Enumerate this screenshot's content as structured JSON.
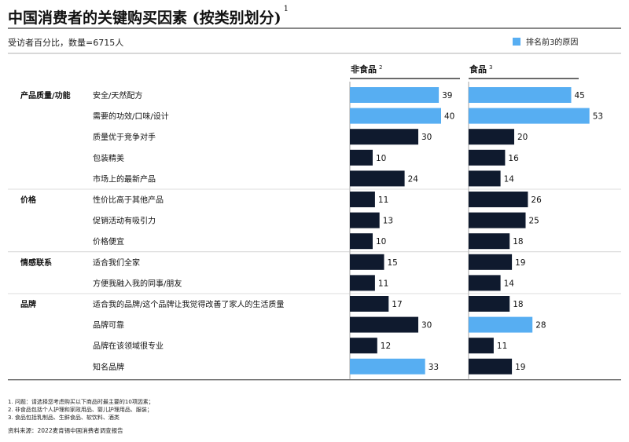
{
  "title": "中国消费者的关键购买因素 (按类别划分)",
  "title_note": "1",
  "subtitle": "受访者百分比，数量=6715人",
  "legend": {
    "label": "排名前3的原因",
    "color": "#57aef2"
  },
  "colors": {
    "highlight": "#57aef2",
    "normal": "#0f1a2e"
  },
  "chart_data": {
    "type": "bar",
    "orientation": "horizontal",
    "panels": [
      {
        "name": "非食品",
        "note": "2"
      },
      {
        "name": "食品",
        "note": "3"
      }
    ],
    "groups": [
      {
        "label": "产品质量/功能",
        "rows": [
          {
            "label": "安全/天然配方",
            "values": [
              39,
              45
            ],
            "top3": [
              true,
              true
            ]
          },
          {
            "label": "需要的功效/口味/设计",
            "values": [
              40,
              53
            ],
            "top3": [
              true,
              true
            ]
          },
          {
            "label": "质量优于竞争对手",
            "values": [
              30,
              20
            ],
            "top3": [
              false,
              false
            ]
          },
          {
            "label": "包装精美",
            "values": [
              10,
              16
            ],
            "top3": [
              false,
              false
            ]
          },
          {
            "label": "市场上的最新产品",
            "values": [
              24,
              14
            ],
            "top3": [
              false,
              false
            ]
          }
        ]
      },
      {
        "label": "价格",
        "rows": [
          {
            "label": "性价比高于其他产品",
            "values": [
              11,
              26
            ],
            "top3": [
              false,
              false
            ]
          },
          {
            "label": "促销活动有吸引力",
            "values": [
              13,
              25
            ],
            "top3": [
              false,
              false
            ]
          },
          {
            "label": "价格便宜",
            "values": [
              10,
              18
            ],
            "top3": [
              false,
              false
            ]
          }
        ]
      },
      {
        "label": "情感联系",
        "rows": [
          {
            "label": "适合我们全家",
            "values": [
              15,
              19
            ],
            "top3": [
              false,
              false
            ]
          },
          {
            "label": "方便我融入我的同事/朋友",
            "values": [
              11,
              14
            ],
            "top3": [
              false,
              false
            ]
          }
        ]
      },
      {
        "label": "品牌",
        "rows": [
          {
            "label": "适合我的品牌/这个品牌让我觉得改善了家人的生活质量",
            "values": [
              17,
              18
            ],
            "top3": [
              false,
              false
            ]
          },
          {
            "label": "品牌可靠",
            "values": [
              30,
              28
            ],
            "top3": [
              false,
              true
            ]
          },
          {
            "label": "品牌在该领域很专业",
            "values": [
              12,
              11
            ],
            "top3": [
              false,
              false
            ]
          },
          {
            "label": "知名品牌",
            "values": [
              33,
              19
            ],
            "top3": [
              true,
              false
            ]
          }
        ]
      }
    ]
  },
  "footnotes": [
    "1. 问题：请选择您考虑购买以下商品时最主要的10项因素；",
    "2. 非食品包括个人护理和家政用品、婴儿护理用品、服装；",
    "3. 食品包括乳制品、生鲜食品、软饮料、酒类"
  ],
  "source": "资料来源：2022麦肯锡中国消费者调查报告"
}
